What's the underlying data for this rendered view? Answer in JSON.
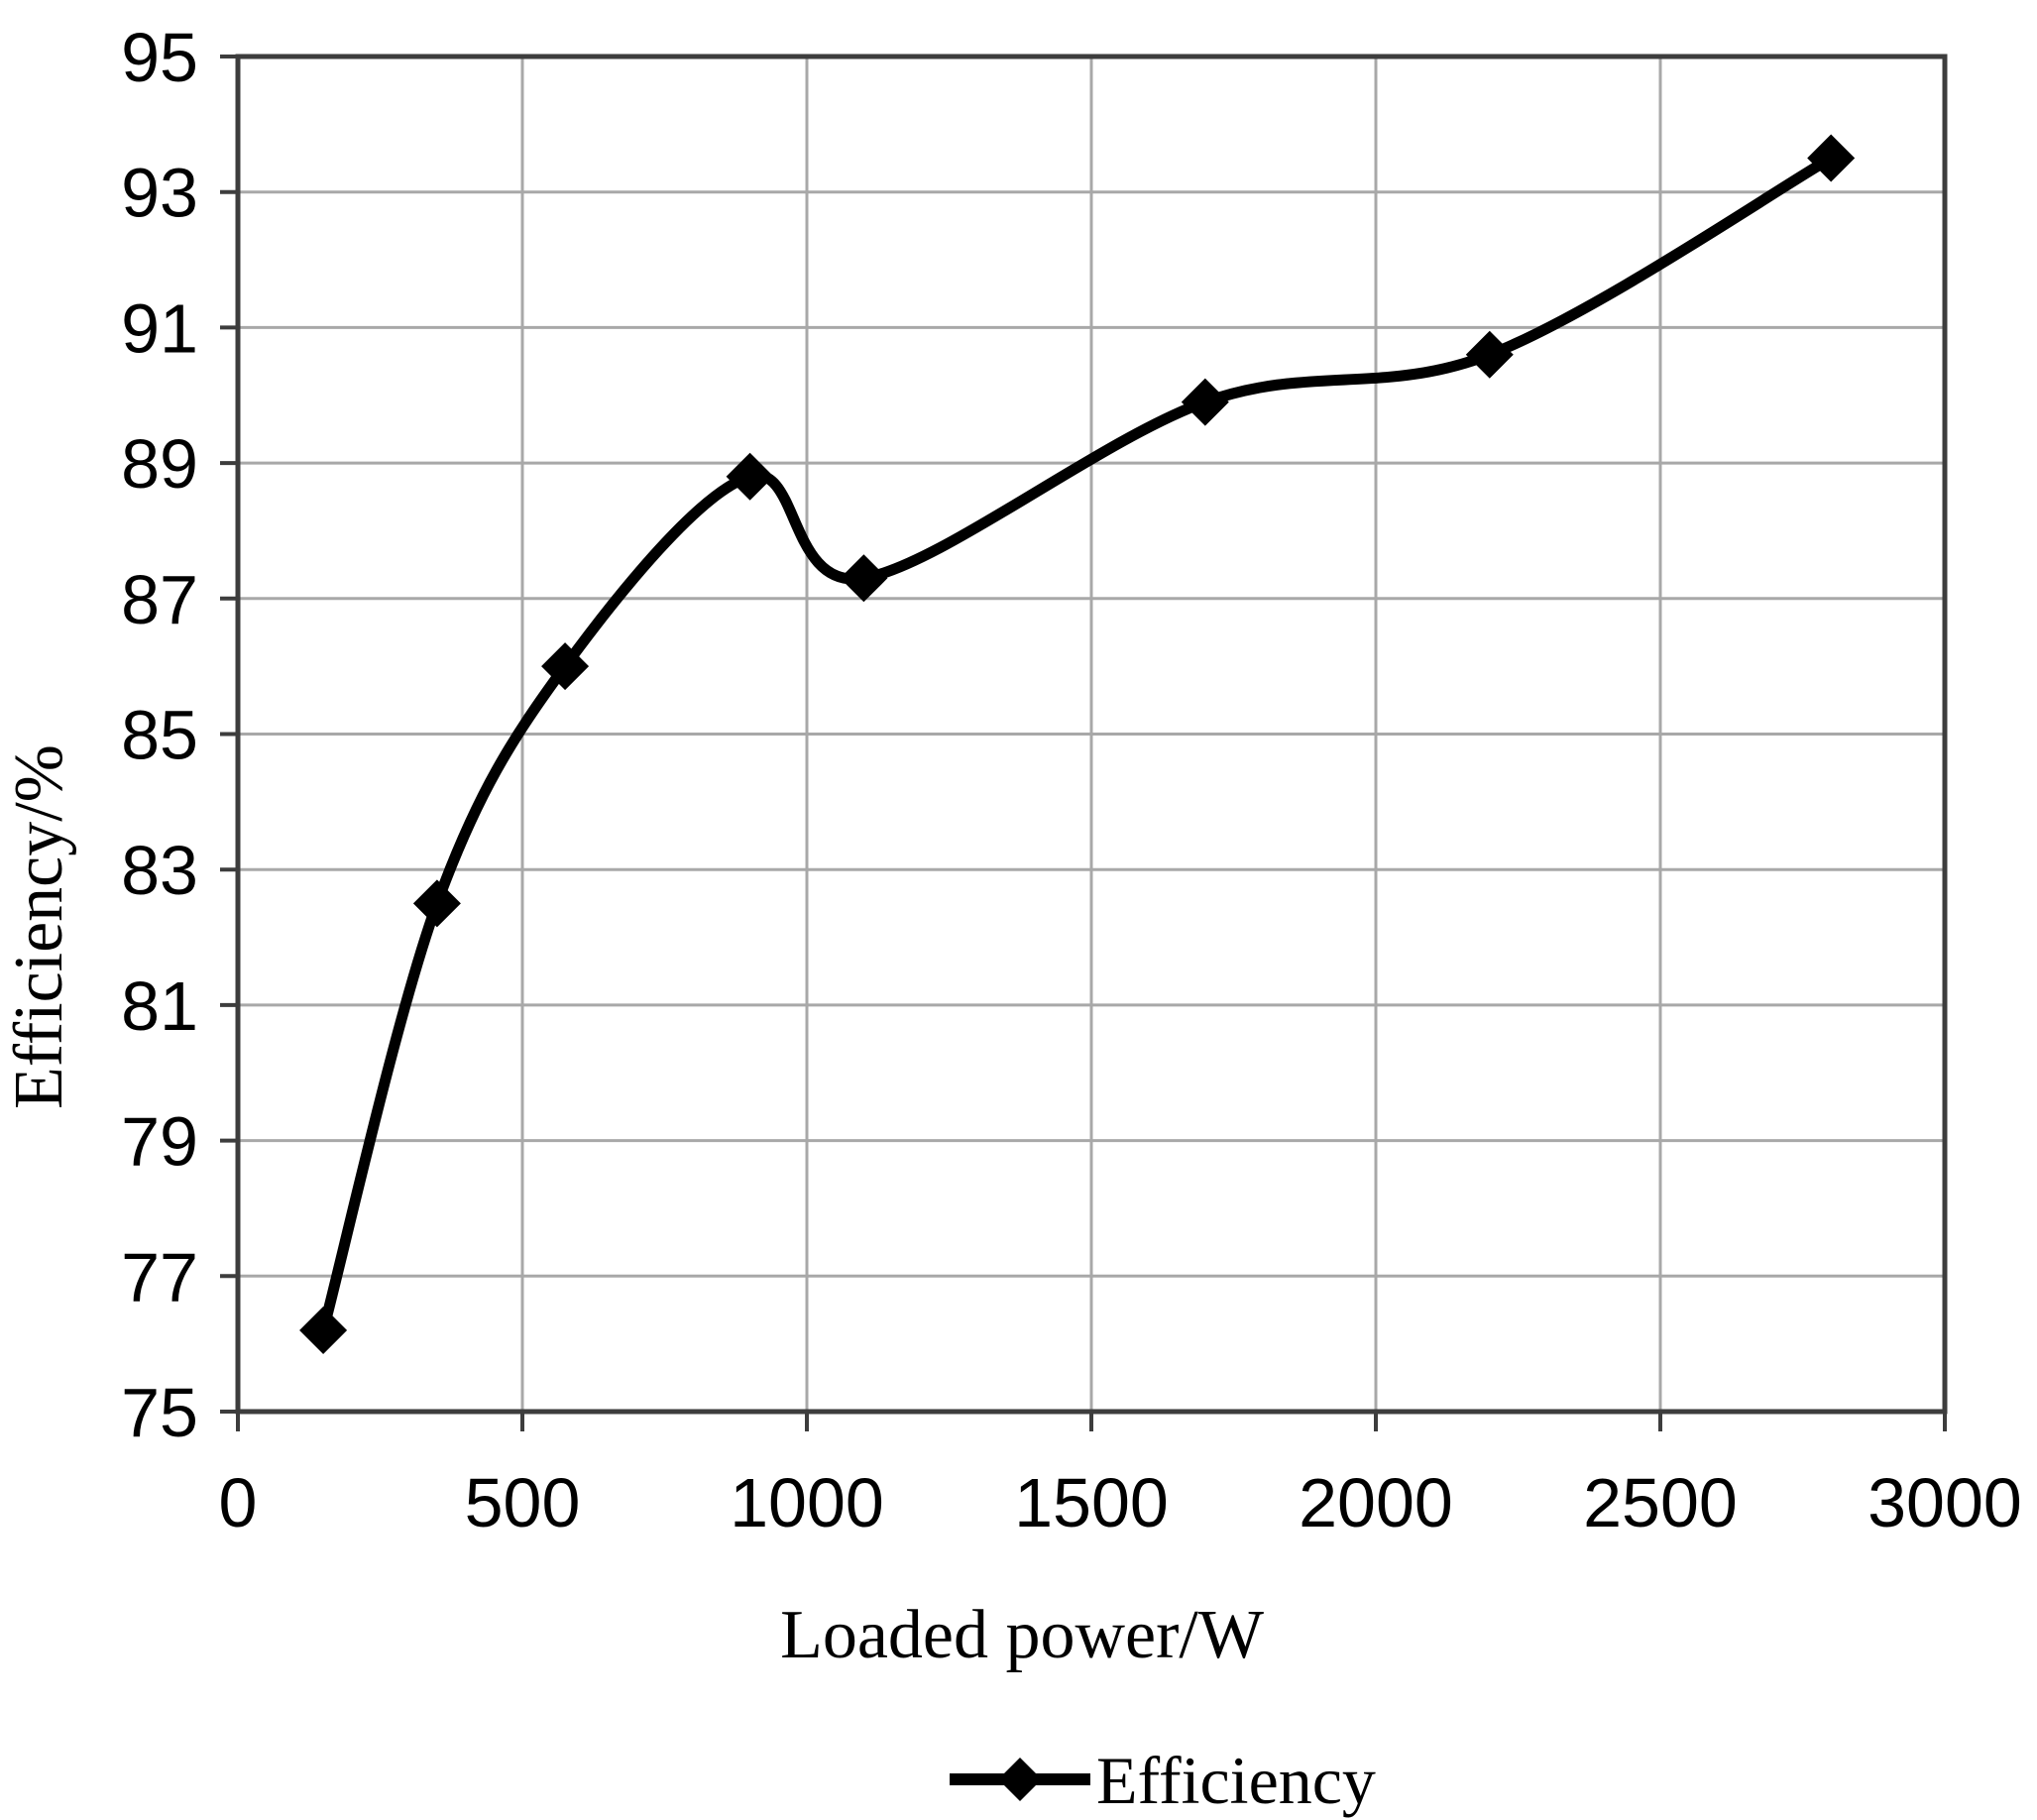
{
  "chart_data": {
    "type": "line",
    "title": "",
    "xlabel": "Loaded power/W",
    "ylabel": "Efficiency/%",
    "xlim": [
      0,
      3000
    ],
    "ylim": [
      75,
      95
    ],
    "xticks": [
      0,
      500,
      1000,
      1500,
      2000,
      2500,
      3000
    ],
    "yticks": [
      75,
      77,
      79,
      81,
      83,
      85,
      87,
      89,
      91,
      93,
      95
    ],
    "grid": true,
    "smooth": true,
    "marker": "diamond",
    "legend_position": "bottom-center",
    "series": [
      {
        "name": "Efficiency",
        "x": [
          150,
          350,
          575,
          900,
          1100,
          1700,
          2200,
          2800
        ],
        "y": [
          76.2,
          82.5,
          86.0,
          88.8,
          87.3,
          89.9,
          90.6,
          93.5
        ]
      }
    ],
    "colors": {
      "line": "#000000",
      "marker": "#000000",
      "grid": "#a8a8a8",
      "frame": "#3d3d3d",
      "tick": "#3d3d3d",
      "text": "#000000",
      "background": "#ffffff"
    }
  }
}
